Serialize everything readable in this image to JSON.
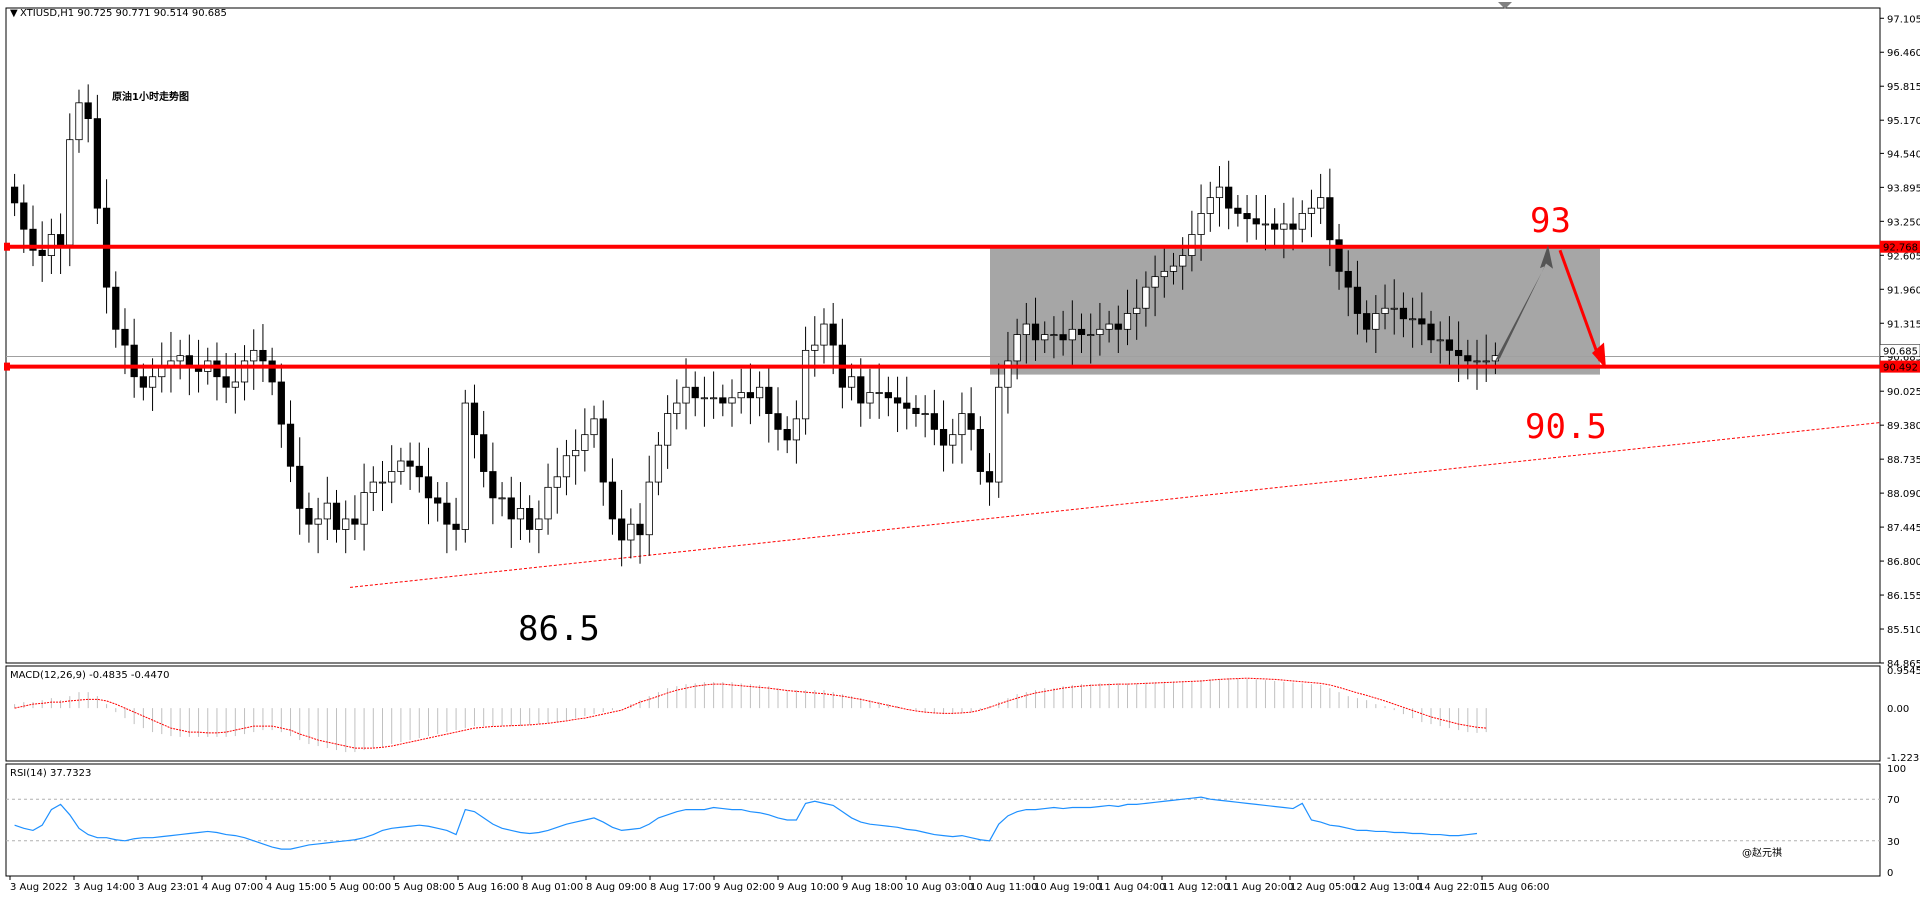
{
  "window": {
    "symbol_header": "XTIUSD,H1  90.725 90.771 90.514 90.685",
    "dropdown_icon": "triangle-down-icon"
  },
  "chart_data": {
    "type": "candlestick",
    "title": "原油1小时走势图",
    "colors": {
      "bull": "#ffffff",
      "bear": "#000000",
      "outline": "#000000",
      "level": "#ff0000",
      "zone": "#a6a6a6",
      "arrow_up": "#555555",
      "arrow_down": "#ff0000",
      "macd_signal": "#ff0000",
      "macd_hist": "#c0c0c0",
      "rsi": "#1e90ff"
    },
    "ylim": [
      84.865,
      97.3
    ],
    "y_ticks": [
      "97.105",
      "96.460",
      "95.815",
      "95.170",
      "94.540",
      "93.895",
      "93.250",
      "92.605",
      "91.960",
      "91.315",
      "90.685",
      "90.025",
      "89.380",
      "88.735",
      "88.090",
      "87.445",
      "86.800",
      "86.155",
      "85.510",
      "84.865"
    ],
    "x_ticks": [
      "3 Aug 2022",
      "3 Aug 14:00",
      "3 Aug 23:01",
      "4 Aug 07:00",
      "4 Aug 15:00",
      "5 Aug 00:00",
      "5 Aug 08:00",
      "5 Aug 16:00",
      "8 Aug 01:00",
      "8 Aug 09:00",
      "8 Aug 17:00",
      "9 Aug 02:00",
      "9 Aug 10:00",
      "9 Aug 18:00",
      "10 Aug 03:00",
      "10 Aug 11:00",
      "10 Aug 19:00",
      "11 Aug 04:00",
      "11 Aug 12:00",
      "11 Aug 20:00",
      "12 Aug 05:00",
      "12 Aug 13:00",
      "14 Aug 22:01",
      "15 Aug 06:00"
    ],
    "horizontal_levels": [
      {
        "label": "92.768",
        "value": 92.768
      },
      {
        "label": "90.492",
        "value": 90.492
      }
    ],
    "current_price": {
      "label": "90.685",
      "value": 90.685
    },
    "close": [
      93.6,
      93.1,
      92.7,
      92.6,
      93.0,
      92.8,
      94.8,
      95.5,
      95.2,
      93.5,
      92.0,
      91.2,
      90.9,
      90.3,
      90.1,
      90.3,
      90.5,
      90.6,
      90.7,
      90.5,
      90.4,
      90.6,
      90.3,
      90.1,
      90.2,
      90.6,
      90.8,
      90.6,
      90.2,
      89.4,
      88.6,
      87.8,
      87.5,
      87.6,
      87.9,
      87.4,
      87.6,
      87.5,
      88.1,
      88.3,
      88.3,
      88.5,
      88.7,
      88.6,
      88.4,
      88.0,
      87.9,
      87.5,
      87.4,
      89.8,
      89.2,
      88.5,
      88.0,
      88.0,
      87.6,
      87.8,
      87.4,
      87.6,
      88.2,
      88.4,
      88.8,
      88.9,
      89.2,
      89.5,
      88.3,
      87.6,
      87.2,
      87.5,
      87.3,
      88.3,
      89.0,
      89.6,
      89.8,
      90.1,
      89.9,
      89.9,
      89.9,
      89.8,
      89.9,
      90.0,
      89.9,
      90.1,
      89.6,
      89.3,
      89.1,
      89.5,
      90.8,
      90.9,
      91.3,
      90.9,
      90.1,
      90.3,
      89.8,
      90.0,
      90.0,
      89.9,
      89.8,
      89.7,
      89.6,
      89.6,
      89.3,
      89.0,
      89.2,
      89.6,
      89.3,
      88.5,
      88.3,
      90.1,
      90.6,
      91.1,
      91.3,
      91.0,
      91.1,
      91.1,
      91.0,
      91.2,
      91.1,
      91.1,
      91.2,
      91.3,
      91.2,
      91.5,
      91.6,
      92.0,
      92.2,
      92.3,
      92.4,
      92.6,
      93.0,
      93.4,
      93.7,
      93.9,
      93.5,
      93.4,
      93.3,
      93.2,
      93.2,
      93.1,
      93.2,
      93.1,
      93.4,
      93.5,
      93.7,
      92.9,
      92.3,
      92.0,
      91.5,
      91.2,
      91.5,
      91.6,
      91.6,
      91.4,
      91.4,
      91.3,
      91.0,
      91.0,
      90.8,
      90.7,
      90.6,
      90.6,
      90.6,
      90.7
    ],
    "highs_note": "",
    "annotations": [
      {
        "text": "93",
        "color": "#ff0000"
      },
      {
        "text": "90.5",
        "color": "#ff0000"
      },
      {
        "text": "86.5",
        "color": "#000000"
      }
    ],
    "macd": {
      "label": "MACD(12,26,9) -0.4835 -0.4470",
      "ylim": [
        -1.2237,
        0.9545
      ],
      "y_ticks": [
        "0.9545",
        "0.00",
        "-1.2237"
      ],
      "hist": [
        0.1,
        0.15,
        0.15,
        0.2,
        0.25,
        0.2,
        0.3,
        0.4,
        0.4,
        0.3,
        0.1,
        -0.1,
        -0.25,
        -0.4,
        -0.5,
        -0.6,
        -0.65,
        -0.7,
        -0.72,
        -0.72,
        -0.72,
        -0.72,
        -0.72,
        -0.72,
        -0.7,
        -0.65,
        -0.6,
        -0.55,
        -0.55,
        -0.6,
        -0.7,
        -0.8,
        -0.9,
        -0.95,
        -1.0,
        -1.05,
        -1.1,
        -1.1,
        -1.05,
        -1.0,
        -0.98,
        -0.9,
        -0.85,
        -0.8,
        -0.75,
        -0.7,
        -0.65,
        -0.6,
        -0.55,
        -0.5,
        -0.45,
        -0.45,
        -0.45,
        -0.45,
        -0.45,
        -0.45,
        -0.42,
        -0.4,
        -0.38,
        -0.35,
        -0.3,
        -0.25,
        -0.2,
        -0.15,
        -0.1,
        -0.05,
        0.0,
        0.1,
        0.2,
        0.3,
        0.4,
        0.5,
        0.55,
        0.6,
        0.62,
        0.65,
        0.65,
        0.65,
        0.65,
        0.62,
        0.6,
        0.58,
        0.55,
        0.5,
        0.45,
        0.45,
        0.45,
        0.45,
        0.45,
        0.4,
        0.35,
        0.3,
        0.25,
        0.2,
        0.15,
        0.1,
        0.05,
        0.0,
        -0.05,
        -0.1,
        -0.12,
        -0.15,
        -0.15,
        -0.12,
        -0.1,
        -0.05,
        0.05,
        0.15,
        0.25,
        0.35,
        0.4,
        0.45,
        0.5,
        0.5,
        0.55,
        0.58,
        0.6,
        0.6,
        0.62,
        0.62,
        0.62,
        0.62,
        0.62,
        0.64,
        0.65,
        0.66,
        0.66,
        0.67,
        0.68,
        0.7,
        0.72,
        0.73,
        0.75,
        0.74,
        0.73,
        0.72,
        0.7,
        0.68,
        0.66,
        0.64,
        0.62,
        0.6,
        0.58,
        0.5,
        0.4,
        0.3,
        0.25,
        0.2,
        0.1,
        0.05,
        -0.05,
        -0.15,
        -0.25,
        -0.35,
        -0.4,
        -0.45,
        -0.5,
        -0.55,
        -0.6,
        -0.62,
        -0.6
      ],
      "signal": [
        0.0,
        0.05,
        0.1,
        0.12,
        0.15,
        0.15,
        0.18,
        0.2,
        0.22,
        0.22,
        0.18,
        0.1,
        0.0,
        -0.1,
        -0.2,
        -0.3,
        -0.4,
        -0.5,
        -0.55,
        -0.6,
        -0.6,
        -0.62,
        -0.62,
        -0.6,
        -0.55,
        -0.5,
        -0.45,
        -0.45,
        -0.45,
        -0.5,
        -0.55,
        -0.65,
        -0.72,
        -0.8,
        -0.85,
        -0.9,
        -0.95,
        -1.0,
        -1.0,
        -1.0,
        -0.98,
        -0.95,
        -0.9,
        -0.85,
        -0.8,
        -0.75,
        -0.7,
        -0.65,
        -0.6,
        -0.55,
        -0.5,
        -0.48,
        -0.46,
        -0.45,
        -0.44,
        -0.43,
        -0.42,
        -0.4,
        -0.38,
        -0.35,
        -0.32,
        -0.28,
        -0.25,
        -0.2,
        -0.15,
        -0.1,
        -0.05,
        0.05,
        0.15,
        0.22,
        0.3,
        0.38,
        0.45,
        0.5,
        0.55,
        0.58,
        0.6,
        0.6,
        0.58,
        0.56,
        0.54,
        0.52,
        0.5,
        0.47,
        0.44,
        0.42,
        0.4,
        0.38,
        0.36,
        0.33,
        0.3,
        0.26,
        0.22,
        0.17,
        0.12,
        0.07,
        0.02,
        -0.03,
        -0.07,
        -0.1,
        -0.12,
        -0.13,
        -0.13,
        -0.12,
        -0.1,
        -0.05,
        0.02,
        0.1,
        0.18,
        0.25,
        0.32,
        0.38,
        0.42,
        0.46,
        0.5,
        0.53,
        0.55,
        0.57,
        0.58,
        0.59,
        0.6,
        0.6,
        0.61,
        0.62,
        0.63,
        0.64,
        0.65,
        0.66,
        0.67,
        0.68,
        0.7,
        0.72,
        0.73,
        0.74,
        0.75,
        0.74,
        0.73,
        0.72,
        0.7,
        0.68,
        0.66,
        0.64,
        0.62,
        0.58,
        0.52,
        0.45,
        0.38,
        0.32,
        0.25,
        0.18,
        0.1,
        0.02,
        -0.06,
        -0.14,
        -0.22,
        -0.28,
        -0.34,
        -0.4,
        -0.44,
        -0.48,
        -0.5
      ]
    },
    "rsi": {
      "label": "RSI(14) 37.7323",
      "ylim": [
        0,
        100
      ],
      "y_ticks": [
        "100",
        "70",
        "30",
        "0"
      ],
      "values": [
        45,
        42,
        40,
        45,
        60,
        65,
        55,
        42,
        36,
        33,
        33,
        31,
        30,
        32,
        33,
        33,
        34,
        35,
        36,
        37,
        38,
        39,
        38,
        36,
        35,
        33,
        30,
        27,
        24,
        22,
        22,
        24,
        26,
        27,
        28,
        29,
        30,
        31,
        33,
        36,
        40,
        42,
        43,
        44,
        45,
        44,
        42,
        40,
        36,
        60,
        58,
        52,
        46,
        42,
        40,
        38,
        37,
        38,
        40,
        43,
        46,
        48,
        50,
        52,
        48,
        43,
        40,
        41,
        42,
        46,
        52,
        55,
        58,
        60,
        60,
        60,
        62,
        61,
        60,
        60,
        58,
        57,
        55,
        52,
        50,
        50,
        66,
        68,
        66,
        64,
        58,
        52,
        48,
        46,
        45,
        44,
        43,
        41,
        40,
        38,
        36,
        35,
        34,
        35,
        33,
        31,
        30,
        46,
        54,
        58,
        60,
        60,
        61,
        62,
        61,
        62,
        62,
        62,
        63,
        64,
        63,
        65,
        65,
        66,
        67,
        68,
        69,
        70,
        71,
        72,
        70,
        69,
        68,
        67,
        66,
        65,
        64,
        63,
        62,
        61,
        66,
        50,
        48,
        45,
        44,
        42,
        40,
        40,
        39,
        39,
        38,
        38,
        37,
        37,
        36,
        36,
        35,
        35,
        36,
        37
      ],
      "guides": [
        70,
        30
      ]
    },
    "watermark": "@赵元祺"
  }
}
